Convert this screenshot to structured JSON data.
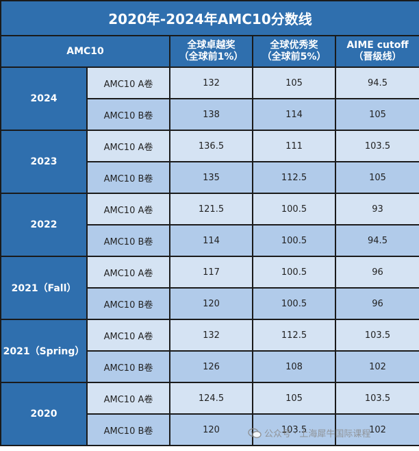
{
  "title": "2020年-2024年AMC10分数线",
  "header": {
    "col0": "AMC10",
    "col1_line1": "全球卓越奖",
    "col1_line2": "（全球前1%）",
    "col2_line1": "全球优秀奖",
    "col2_line2": "（全球前5%）",
    "col3_line1": "AIME cutoff",
    "col3_line2": "（晋级线）"
  },
  "groups": [
    {
      "year": "2024",
      "rows": [
        {
          "paper": "AMC10 A卷",
          "distinction": "132",
          "honor": "105",
          "aime": "94.5"
        },
        {
          "paper": "AMC10 B卷",
          "distinction": "138",
          "honor": "114",
          "aime": "105"
        }
      ]
    },
    {
      "year": "2023",
      "rows": [
        {
          "paper": "AMC10 A卷",
          "distinction": "136.5",
          "honor": "111",
          "aime": "103.5"
        },
        {
          "paper": "AMC10 B卷",
          "distinction": "135",
          "honor": "112.5",
          "aime": "105"
        }
      ]
    },
    {
      "year": "2022",
      "rows": [
        {
          "paper": "AMC10 A卷",
          "distinction": "121.5",
          "honor": "100.5",
          "aime": "93"
        },
        {
          "paper": "AMC10 B卷",
          "distinction": "114",
          "honor": "100.5",
          "aime": "94.5"
        }
      ]
    },
    {
      "year": "2021（Fall）",
      "rows": [
        {
          "paper": "AMC10 A卷",
          "distinction": "117",
          "honor": "100.5",
          "aime": "96"
        },
        {
          "paper": "AMC10 B卷",
          "distinction": "120",
          "honor": "100.5",
          "aime": "96"
        }
      ]
    },
    {
      "year": "2021（Spring）",
      "rows": [
        {
          "paper": "AMC10 A卷",
          "distinction": "132",
          "honor": "112.5",
          "aime": "103.5"
        },
        {
          "paper": "AMC10 B卷",
          "distinction": "126",
          "honor": "108",
          "aime": "102"
        }
      ]
    },
    {
      "year": "2020",
      "rows": [
        {
          "paper": "AMC10 A卷",
          "distinction": "124.5",
          "honor": "105",
          "aime": "103.5"
        },
        {
          "paper": "AMC10 B卷",
          "distinction": "120",
          "honor": "103.5",
          "aime": "102"
        }
      ]
    }
  ],
  "watermark": {
    "text": "公众号 · 上海犀牛国际课程",
    "icon": "wechat-icon"
  }
}
